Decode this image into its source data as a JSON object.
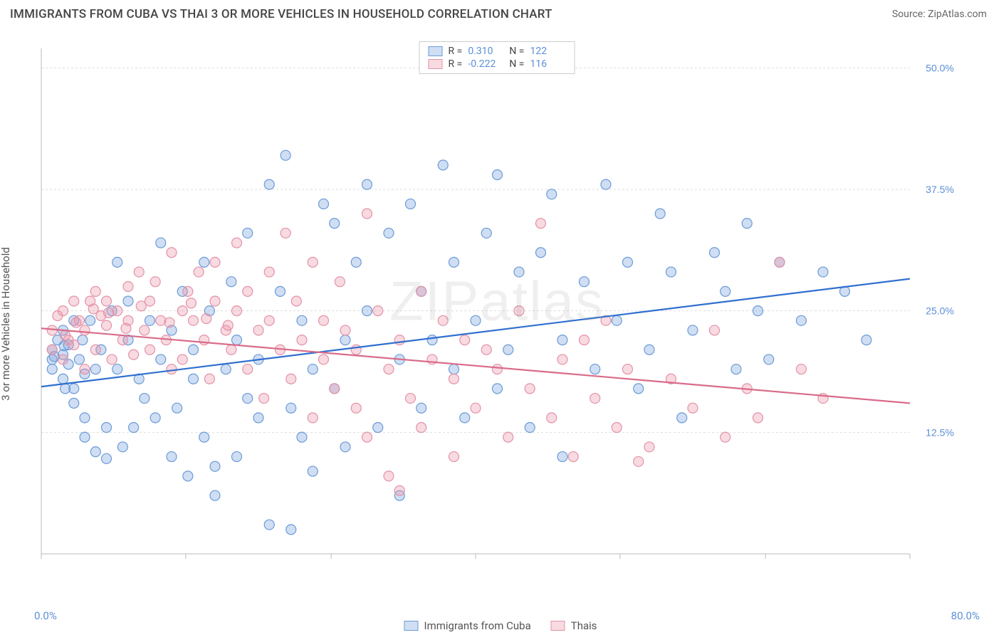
{
  "title": "IMMIGRANTS FROM CUBA VS THAI 3 OR MORE VEHICLES IN HOUSEHOLD CORRELATION CHART",
  "source": "Source: ZipAtlas.com",
  "y_axis_label": "3 or more Vehicles in Household",
  "watermark": "ZIPatlas",
  "chart": {
    "type": "scatter",
    "xlim": [
      0,
      80
    ],
    "ylim": [
      0,
      52
    ],
    "x_tick_positions": [
      0,
      13.3,
      26.7,
      40,
      53.3,
      66.7,
      80
    ],
    "y_ticks": [
      12.5,
      25.0,
      37.5,
      50.0
    ],
    "y_tick_labels": [
      "12.5%",
      "25.0%",
      "37.5%",
      "50.0%"
    ],
    "x_bound_labels": [
      "0.0%",
      "80.0%"
    ],
    "grid_color": "#dddddd",
    "axis_color": "#bbbbbb",
    "background_color": "#ffffff",
    "tick_label_color": "#5b8fd6",
    "marker_radius": 7,
    "marker_stroke_width": 1.2,
    "trend_line_width": 2.2
  },
  "series": [
    {
      "name": "Immigrants from Cuba",
      "fill": "rgba(120,160,220,0.35)",
      "stroke": "#6a9bd8",
      "line_color": "#2f6fd0",
      "R": "0.310",
      "N": "122",
      "trend": {
        "x1": 0,
        "y1": 17.2,
        "x2": 80,
        "y2": 28.3
      },
      "points": [
        [
          1,
          21
        ],
        [
          1,
          20
        ],
        [
          1,
          19
        ],
        [
          1.5,
          22
        ],
        [
          2,
          18
        ],
        [
          2,
          20.5
        ],
        [
          2,
          23
        ],
        [
          2.2,
          17
        ],
        [
          2.5,
          19.5
        ],
        [
          2.5,
          21.5
        ],
        [
          3,
          24
        ],
        [
          3,
          15.5
        ],
        [
          3,
          17
        ],
        [
          3.5,
          20
        ],
        [
          3.8,
          22
        ],
        [
          4,
          12
        ],
        [
          4,
          14
        ],
        [
          4,
          18.5
        ],
        [
          4.5,
          24
        ],
        [
          5,
          19
        ],
        [
          5,
          10.5
        ],
        [
          5.5,
          21
        ],
        [
          6,
          9.8
        ],
        [
          6,
          13
        ],
        [
          6.5,
          25
        ],
        [
          7,
          30
        ],
        [
          7,
          19
        ],
        [
          7.5,
          11
        ],
        [
          8,
          22
        ],
        [
          8,
          26
        ],
        [
          8.5,
          13
        ],
        [
          9,
          18
        ],
        [
          9.5,
          16
        ],
        [
          10,
          24
        ],
        [
          10.5,
          14
        ],
        [
          11,
          32
        ],
        [
          11,
          20
        ],
        [
          12,
          10
        ],
        [
          12,
          23
        ],
        [
          12.5,
          15
        ],
        [
          13,
          27
        ],
        [
          13.5,
          8
        ],
        [
          14,
          18
        ],
        [
          14,
          21
        ],
        [
          15,
          30
        ],
        [
          15,
          12
        ],
        [
          15.5,
          25
        ],
        [
          16,
          6
        ],
        [
          16,
          9
        ],
        [
          17,
          19
        ],
        [
          17.5,
          28
        ],
        [
          18,
          10
        ],
        [
          18,
          22
        ],
        [
          19,
          16
        ],
        [
          19,
          33
        ],
        [
          20,
          14
        ],
        [
          20,
          20
        ],
        [
          21,
          38
        ],
        [
          21,
          3
        ],
        [
          22,
          27
        ],
        [
          22.5,
          41
        ],
        [
          23,
          15
        ],
        [
          23,
          2.5
        ],
        [
          24,
          12
        ],
        [
          24,
          24
        ],
        [
          25,
          8.5
        ],
        [
          25,
          19
        ],
        [
          26,
          36
        ],
        [
          27,
          34
        ],
        [
          27,
          17
        ],
        [
          28,
          11
        ],
        [
          28,
          22
        ],
        [
          29,
          30
        ],
        [
          30,
          38
        ],
        [
          30,
          25
        ],
        [
          31,
          13
        ],
        [
          32,
          33
        ],
        [
          33,
          20
        ],
        [
          33,
          6
        ],
        [
          34,
          36
        ],
        [
          35,
          27
        ],
        [
          35,
          15
        ],
        [
          36,
          22
        ],
        [
          37,
          40
        ],
        [
          38,
          19
        ],
        [
          38,
          30
        ],
        [
          39,
          14
        ],
        [
          40,
          24
        ],
        [
          41,
          33
        ],
        [
          42,
          17
        ],
        [
          42,
          39
        ],
        [
          43,
          21
        ],
        [
          44,
          29
        ],
        [
          45,
          13
        ],
        [
          46,
          31
        ],
        [
          47,
          37
        ],
        [
          48,
          22
        ],
        [
          48,
          10
        ],
        [
          50,
          28
        ],
        [
          51,
          19
        ],
        [
          52,
          38
        ],
        [
          53,
          24
        ],
        [
          54,
          30
        ],
        [
          55,
          17
        ],
        [
          56,
          21
        ],
        [
          57,
          35
        ],
        [
          58,
          29
        ],
        [
          59,
          14
        ],
        [
          60,
          23
        ],
        [
          62,
          31
        ],
        [
          63,
          27
        ],
        [
          64,
          19
        ],
        [
          65,
          34
        ],
        [
          66,
          25
        ],
        [
          67,
          20
        ],
        [
          68,
          30
        ],
        [
          70,
          24
        ],
        [
          72,
          29
        ],
        [
          74,
          27
        ],
        [
          76,
          22
        ],
        [
          1.2,
          20.3
        ],
        [
          2.1,
          21.4
        ]
      ]
    },
    {
      "name": "Thais",
      "fill": "rgba(235,150,170,0.35)",
      "stroke": "#e392a8",
      "line_color": "#d96b8a",
      "R": "-0.222",
      "N": "116",
      "trend": {
        "x1": 0,
        "y1": 23.2,
        "x2": 80,
        "y2": 15.5
      },
      "points": [
        [
          1,
          23
        ],
        [
          1,
          21
        ],
        [
          1.5,
          24.5
        ],
        [
          2,
          20
        ],
        [
          2,
          25
        ],
        [
          2.5,
          22
        ],
        [
          3,
          26
        ],
        [
          3,
          21.5
        ],
        [
          3.5,
          24
        ],
        [
          4,
          23
        ],
        [
          4,
          19
        ],
        [
          4.5,
          26
        ],
        [
          5,
          27
        ],
        [
          5,
          21
        ],
        [
          5.5,
          24.5
        ],
        [
          6,
          23.5
        ],
        [
          6,
          26
        ],
        [
          6.5,
          20
        ],
        [
          7,
          25
        ],
        [
          7.5,
          22
        ],
        [
          8,
          27.5
        ],
        [
          8,
          24
        ],
        [
          8.5,
          20.5
        ],
        [
          9,
          29
        ],
        [
          9.5,
          23
        ],
        [
          10,
          26
        ],
        [
          10,
          21
        ],
        [
          10.5,
          28
        ],
        [
          11,
          24
        ],
        [
          11.5,
          22
        ],
        [
          12,
          19
        ],
        [
          12,
          31
        ],
        [
          13,
          25
        ],
        [
          13,
          20
        ],
        [
          13.5,
          27
        ],
        [
          14,
          24
        ],
        [
          14.5,
          29
        ],
        [
          15,
          22
        ],
        [
          15.5,
          18
        ],
        [
          16,
          26
        ],
        [
          16,
          30
        ],
        [
          17,
          23
        ],
        [
          17.5,
          21
        ],
        [
          18,
          32
        ],
        [
          18,
          25
        ],
        [
          19,
          19
        ],
        [
          19,
          27
        ],
        [
          20,
          23
        ],
        [
          20.5,
          16
        ],
        [
          21,
          29
        ],
        [
          21,
          24
        ],
        [
          22,
          21
        ],
        [
          22.5,
          33
        ],
        [
          23,
          18
        ],
        [
          23.5,
          26
        ],
        [
          24,
          22
        ],
        [
          25,
          14
        ],
        [
          25,
          30
        ],
        [
          26,
          20
        ],
        [
          26,
          24
        ],
        [
          27,
          17
        ],
        [
          27.5,
          28
        ],
        [
          28,
          23
        ],
        [
          29,
          15
        ],
        [
          29,
          21
        ],
        [
          30,
          35
        ],
        [
          30,
          12
        ],
        [
          31,
          25
        ],
        [
          32,
          19
        ],
        [
          32,
          8
        ],
        [
          33,
          22
        ],
        [
          33,
          6.5
        ],
        [
          34,
          16
        ],
        [
          35,
          27
        ],
        [
          35,
          13
        ],
        [
          36,
          20
        ],
        [
          37,
          24
        ],
        [
          38,
          10
        ],
        [
          38,
          18
        ],
        [
          39,
          22
        ],
        [
          40,
          15
        ],
        [
          41,
          21
        ],
        [
          42,
          19
        ],
        [
          43,
          12
        ],
        [
          44,
          25
        ],
        [
          45,
          17
        ],
        [
          46,
          34
        ],
        [
          47,
          14
        ],
        [
          48,
          20
        ],
        [
          49,
          10
        ],
        [
          50,
          22
        ],
        [
          51,
          16
        ],
        [
          52,
          24
        ],
        [
          53,
          13
        ],
        [
          54,
          19
        ],
        [
          55,
          9.5
        ],
        [
          56,
          11
        ],
        [
          58,
          18
        ],
        [
          60,
          15
        ],
        [
          62,
          23
        ],
        [
          63,
          12
        ],
        [
          65,
          17
        ],
        [
          66,
          14
        ],
        [
          68,
          30
        ],
        [
          70,
          19
        ],
        [
          72,
          16
        ],
        [
          2.2,
          22.5
        ],
        [
          3.2,
          23.8
        ],
        [
          4.8,
          25.2
        ],
        [
          6.2,
          24.8
        ],
        [
          7.8,
          23.2
        ],
        [
          9.2,
          25.5
        ],
        [
          11.8,
          23.8
        ],
        [
          13.8,
          25.8
        ],
        [
          15.2,
          24.2
        ],
        [
          17.2,
          23.5
        ]
      ]
    }
  ],
  "legend_top": {
    "R_label": "R =",
    "N_label": "N ="
  },
  "legend_bottom_labels": [
    "Immigrants from Cuba",
    "Thais"
  ]
}
